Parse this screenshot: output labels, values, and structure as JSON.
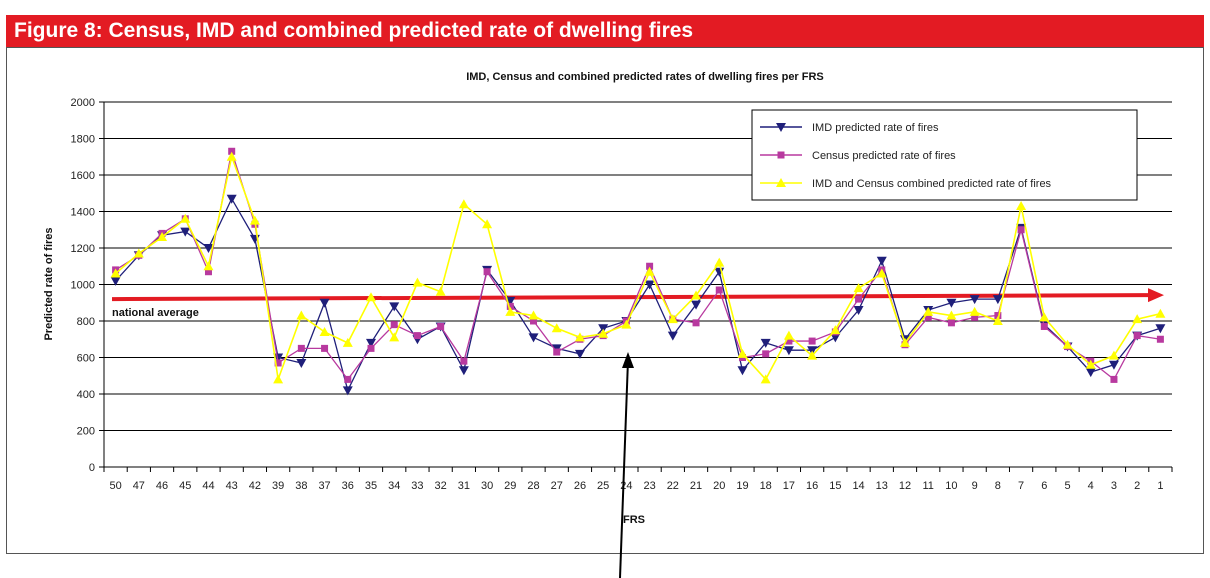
{
  "figure_title": "Figure 8: Census, IMD and combined predicted rate of dwelling fires",
  "colors": {
    "banner": "#e31b23",
    "imd": "#1f1f7a",
    "census": "#b8399f",
    "combined": "#ffff00",
    "average_line": "#e31b23"
  },
  "chart_data": {
    "type": "line",
    "title": "IMD, Census and combined predicted rates of dwelling fires per FRS",
    "xlabel": "FRS",
    "ylabel": "Predicted rate of fires",
    "ylim": [
      0,
      2000
    ],
    "yticks": [
      0,
      200,
      400,
      600,
      800,
      1000,
      1200,
      1400,
      1600,
      1800,
      2000
    ],
    "grid": true,
    "legend_position": "top-right",
    "categories": [
      "50",
      "47",
      "46",
      "45",
      "44",
      "43",
      "42",
      "39",
      "38",
      "37",
      "36",
      "35",
      "34",
      "33",
      "32",
      "31",
      "30",
      "29",
      "28",
      "27",
      "26",
      "25",
      "24",
      "23",
      "22",
      "21",
      "20",
      "19",
      "18",
      "17",
      "16",
      "15",
      "14",
      "13",
      "12",
      "11",
      "10",
      "9",
      "8",
      "7",
      "6",
      "5",
      "4",
      "3",
      "2",
      "1"
    ],
    "series": [
      {
        "name": "IMD predicted rate of fires",
        "marker": "triangle-down",
        "values": [
          1020,
          1160,
          1270,
          1290,
          1200,
          1470,
          1250,
          600,
          570,
          900,
          420,
          680,
          880,
          700,
          770,
          530,
          1080,
          910,
          710,
          650,
          620,
          760,
          800,
          1000,
          720,
          890,
          1070,
          530,
          680,
          640,
          640,
          710,
          860,
          1130,
          700,
          860,
          900,
          920,
          920,
          1310,
          780,
          660,
          520,
          560,
          720,
          760
        ]
      },
      {
        "name": "Census predicted rate of fires",
        "marker": "square",
        "values": [
          1080,
          1160,
          1280,
          1360,
          1070,
          1730,
          1330,
          570,
          650,
          650,
          480,
          650,
          780,
          720,
          770,
          580,
          1070,
          880,
          800,
          630,
          700,
          720,
          800,
          1100,
          810,
          790,
          970,
          600,
          620,
          690,
          690,
          740,
          920,
          1080,
          670,
          820,
          790,
          820,
          830,
          1300,
          770,
          660,
          580,
          480,
          720,
          700
        ]
      },
      {
        "name": "IMD and Census combined predicted rate of fires",
        "marker": "triangle-up",
        "values": [
          1060,
          1170,
          1260,
          1360,
          1100,
          1700,
          1350,
          480,
          830,
          740,
          680,
          930,
          710,
          1010,
          960,
          1440,
          1330,
          850,
          830,
          760,
          710,
          730,
          780,
          1070,
          810,
          940,
          1120,
          620,
          480,
          720,
          610,
          750,
          980,
          1060,
          680,
          850,
          830,
          850,
          800,
          1430,
          820,
          670,
          560,
          610,
          810,
          840
        ]
      }
    ],
    "annotations": [
      {
        "text": "national average",
        "y": 920
      }
    ]
  }
}
